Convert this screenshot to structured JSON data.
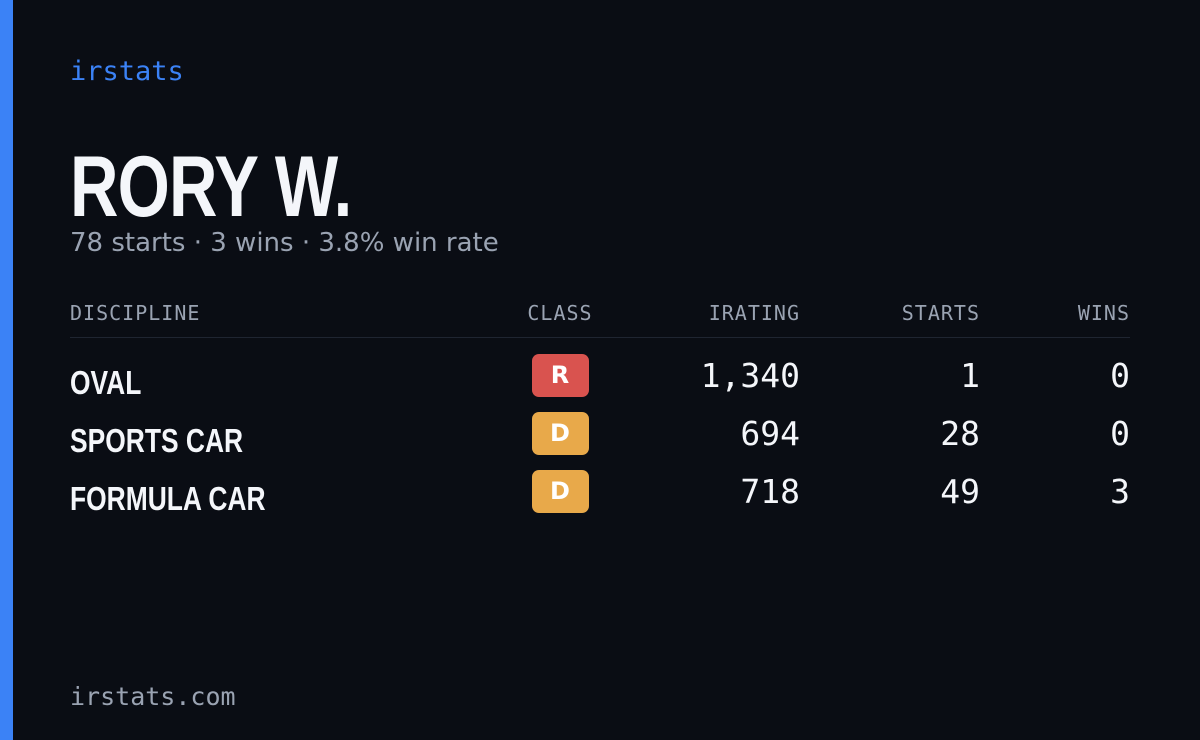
{
  "brand": "irstats",
  "profile": {
    "name": "RORY W.",
    "summary": "78 starts · 3 wins · 3.8% win rate"
  },
  "table": {
    "headers": [
      "DISCIPLINE",
      "CLASS",
      "IRATING",
      "STARTS",
      "WINS"
    ],
    "rows": [
      {
        "discipline": "OVAL",
        "class": "R",
        "class_color": "#d9534f",
        "irating": "1,340",
        "starts": "1",
        "wins": "0"
      },
      {
        "discipline": "SPORTS CAR",
        "class": "D",
        "class_color": "#e8a94a",
        "irating": "694",
        "starts": "28",
        "wins": "0"
      },
      {
        "discipline": "FORMULA CAR",
        "class": "D",
        "class_color": "#e8a94a",
        "irating": "718",
        "starts": "49",
        "wins": "3"
      }
    ]
  },
  "footer": "irstats.com"
}
